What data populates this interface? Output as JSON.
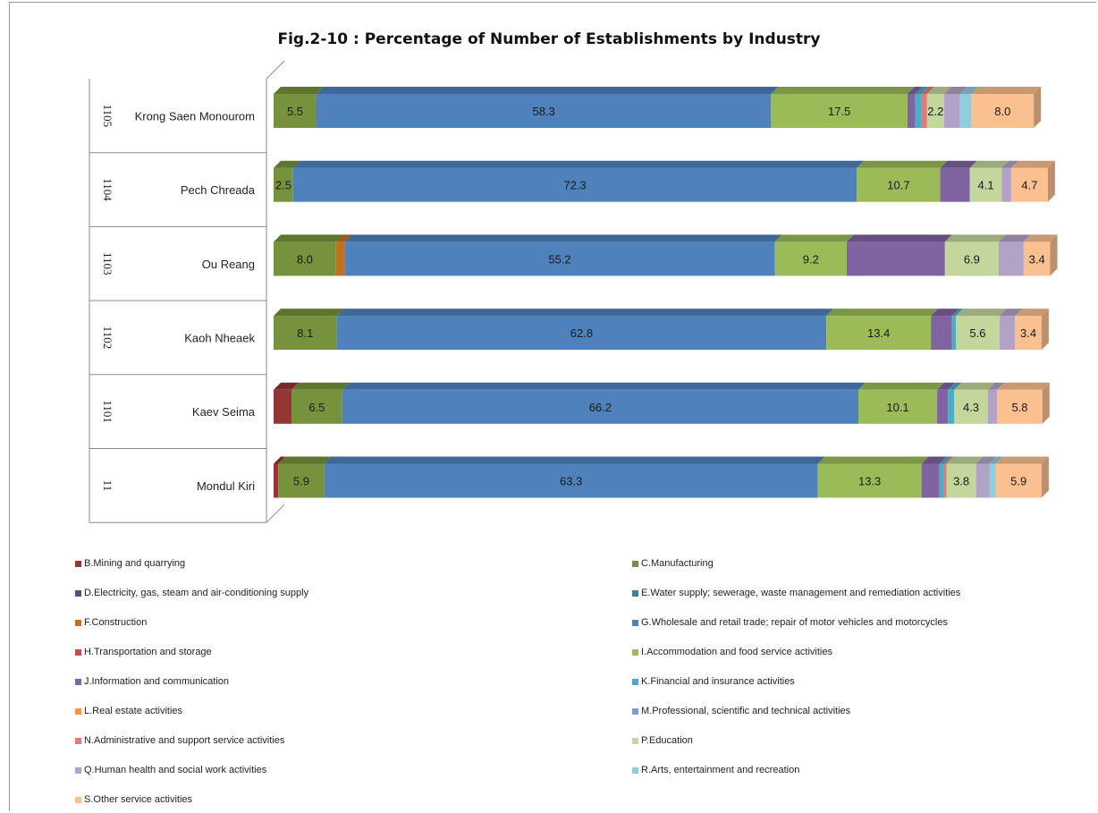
{
  "chart_data": {
    "type": "bar",
    "orientation": "horizontal",
    "stacked": "percent",
    "title": "Fig.2-10 : Percentage of Number of Establishments by Industry",
    "categories": [
      {
        "code": "1105",
        "name": "Krong Saen Monourom"
      },
      {
        "code": "1104",
        "name": "Pech Chreada"
      },
      {
        "code": "1103",
        "name": "Ou Reang"
      },
      {
        "code": "1102",
        "name": "Kaoh Nheaek"
      },
      {
        "code": "1101",
        "name": "Kaev Seima"
      },
      {
        "code": "11",
        "name": "Mondul Kiri"
      }
    ],
    "series": [
      {
        "name": "B.Mining and quarrying",
        "color": "#943634",
        "values": [
          0,
          0,
          0,
          0,
          2.3,
          0.6
        ]
      },
      {
        "name": "C.Manufacturing",
        "color": "#76923c",
        "values": [
          5.5,
          2.5,
          8.0,
          8.1,
          6.5,
          5.9
        ]
      },
      {
        "name": "D.Electricity, gas, steam and air-conditioning supply",
        "color": "#5f497a",
        "values": [
          0,
          0,
          0,
          0,
          0,
          0
        ]
      },
      {
        "name": "E.Water supply; sewerage, waste management and remediation activities",
        "color": "#31849b",
        "values": [
          0,
          0,
          0,
          0,
          0,
          0
        ]
      },
      {
        "name": "F.Construction",
        "color": "#c0711f",
        "values": [
          0,
          0,
          1.1,
          0,
          0,
          0
        ]
      },
      {
        "name": "G.Wholesale and retail trade; repair of motor vehicles and motorcycles",
        "color": "#4f81bd",
        "values": [
          58.3,
          72.3,
          55.2,
          62.8,
          66.2,
          63.3
        ]
      },
      {
        "name": "H.Transportation and storage",
        "color": "#c0504d",
        "values": [
          0,
          0,
          0,
          0,
          0,
          0
        ]
      },
      {
        "name": "I.Accommodation and food service activities",
        "color": "#9bbb59",
        "values": [
          17.5,
          10.7,
          9.2,
          13.4,
          10.1,
          13.3
        ]
      },
      {
        "name": "J.Information and communication",
        "color": "#8064a2",
        "values": [
          1.0,
          3.8,
          12.6,
          2.7,
          1.4,
          2.3
        ]
      },
      {
        "name": "K.Financial and insurance activities",
        "color": "#4bacc6",
        "values": [
          0.8,
          0,
          0,
          0.5,
          0.8,
          0.6
        ]
      },
      {
        "name": "L.Real estate activities",
        "color": "#f79646",
        "values": [
          0,
          0,
          0,
          0,
          0,
          0
        ]
      },
      {
        "name": "M.Professional, scientific and technical activities",
        "color": "#7ba0cd",
        "values": [
          0,
          0,
          0,
          0,
          0,
          0
        ]
      },
      {
        "name": "N.Administrative and support service activities",
        "color": "#e07b79",
        "values": [
          0.7,
          0,
          0,
          0,
          0,
          0.3
        ]
      },
      {
        "name": "P.Education",
        "color": "#c3d69b",
        "values": [
          2.2,
          4.1,
          6.9,
          5.6,
          4.3,
          3.8
        ]
      },
      {
        "name": "Q.Human health and social work activities",
        "color": "#b3a2c7",
        "values": [
          2.0,
          1.2,
          3.2,
          2.0,
          1.2,
          1.7
        ]
      },
      {
        "name": "R.Arts, entertainment and recreation",
        "color": "#92cddc",
        "values": [
          1.5,
          0,
          0,
          0,
          0,
          0.8
        ]
      },
      {
        "name": "S.Other service activities",
        "color": "#fac090",
        "values": [
          8.0,
          4.7,
          3.4,
          3.4,
          5.8,
          5.9
        ]
      }
    ],
    "data_labels": [
      [
        {
          "series": 1,
          "text": "5.5"
        },
        {
          "series": 5,
          "text": "58.3"
        },
        {
          "series": 7,
          "text": "17.5"
        },
        {
          "series": 13,
          "text": "2.2"
        },
        {
          "series": 16,
          "text": "8.0"
        }
      ],
      [
        {
          "series": 1,
          "text": "2.5"
        },
        {
          "series": 5,
          "text": "72.3"
        },
        {
          "series": 7,
          "text": "10.7"
        },
        {
          "series": 13,
          "text": "4.1"
        },
        {
          "series": 16,
          "text": "4.7"
        }
      ],
      [
        {
          "series": 1,
          "text": "8.0"
        },
        {
          "series": 5,
          "text": "55.2"
        },
        {
          "series": 7,
          "text": "9.2"
        },
        {
          "series": 13,
          "text": "6.9"
        },
        {
          "series": 16,
          "text": "3.4"
        }
      ],
      [
        {
          "series": 1,
          "text": "8.1"
        },
        {
          "series": 5,
          "text": "62.8"
        },
        {
          "series": 7,
          "text": "13.4"
        },
        {
          "series": 13,
          "text": "5.6"
        },
        {
          "series": 16,
          "text": "3.4"
        }
      ],
      [
        {
          "series": 1,
          "text": "6.5"
        },
        {
          "series": 5,
          "text": "66.2"
        },
        {
          "series": 7,
          "text": "10.1"
        },
        {
          "series": 13,
          "text": "4.3"
        },
        {
          "series": 16,
          "text": "5.8"
        }
      ],
      [
        {
          "series": 1,
          "text": "5.9"
        },
        {
          "series": 5,
          "text": "63.3"
        },
        {
          "series": 7,
          "text": "13.3"
        },
        {
          "series": 13,
          "text": "3.8"
        },
        {
          "series": 16,
          "text": "5.9"
        }
      ]
    ],
    "xlim": [
      0,
      100
    ],
    "grid": false,
    "legend_position": "bottom",
    "style": "3d"
  }
}
